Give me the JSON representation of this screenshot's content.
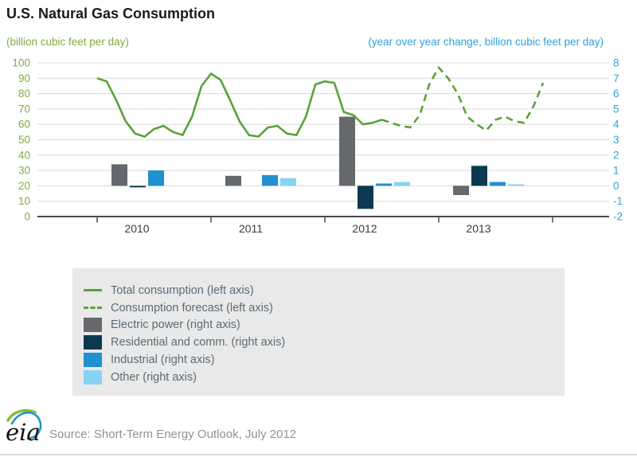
{
  "header": {
    "title": "U.S. Natural Gas Consumption"
  },
  "footer": {
    "logo_text": "eia",
    "source": "Source: Short-Term Energy Outlook, July 2012"
  },
  "colors": {
    "title_text": "#1a1a1a",
    "line_green": "#5ba139",
    "green_text": "#84a93f",
    "blue_text": "#2ba3dc",
    "grid": "#d8d8d8",
    "axis": "#4b4b4b",
    "year_text": "#3a3a3a",
    "legend_bg": "#e9e9e9",
    "legend_text": "#5c6b76",
    "source_text": "#8d9398"
  },
  "chart_data": {
    "type": "line+bar",
    "title": "U.S. Natural Gas Consumption",
    "left_axis": {
      "label": "(billion cubic feet per day)",
      "min": 0,
      "max": 100,
      "tick_step": 10
    },
    "right_axis": {
      "label": "(year over year change, billion cubic feet per day)",
      "min": -2,
      "max": 8,
      "tick_step": 1
    },
    "x_categories": [
      "2010",
      "2011",
      "2012",
      "2013"
    ],
    "grid": true,
    "legend_position": "below",
    "line": {
      "history_name": "Total consumption (left axis)",
      "forecast_name": "Consumption forecast (left axis)",
      "axis": "left",
      "months_start": "2010-01",
      "monthly_values": [
        90,
        88,
        76,
        62,
        54,
        52,
        57,
        59,
        55,
        53,
        65,
        85,
        93,
        89,
        76,
        62,
        53,
        52,
        58,
        59,
        54,
        53,
        65,
        86,
        88,
        87,
        68,
        66,
        60,
        61,
        63,
        61,
        59,
        58,
        66,
        86,
        97,
        90,
        80,
        65,
        60,
        56,
        63,
        65,
        62,
        61,
        72,
        87
      ],
      "forecast_start_index": 30
    },
    "bars": {
      "axis": "right",
      "categories": [
        "2010",
        "2011",
        "2012",
        "2013"
      ],
      "series": [
        {
          "name": "Electric power (right axis)",
          "color": "#65686c",
          "values": [
            1.4,
            0.65,
            4.5,
            -0.6
          ]
        },
        {
          "name": "Residential and comm. (right axis)",
          "color": "#0c3950",
          "values": [
            -0.1,
            0.0,
            -1.5,
            1.3
          ]
        },
        {
          "name": "Industrial (right axis)",
          "color": "#2090cf",
          "values": [
            1.0,
            0.7,
            0.15,
            0.25
          ]
        },
        {
          "name": "Other (right axis)",
          "color": "#87d3f3",
          "values": [
            0.0,
            0.5,
            0.25,
            0.1
          ]
        }
      ]
    }
  }
}
